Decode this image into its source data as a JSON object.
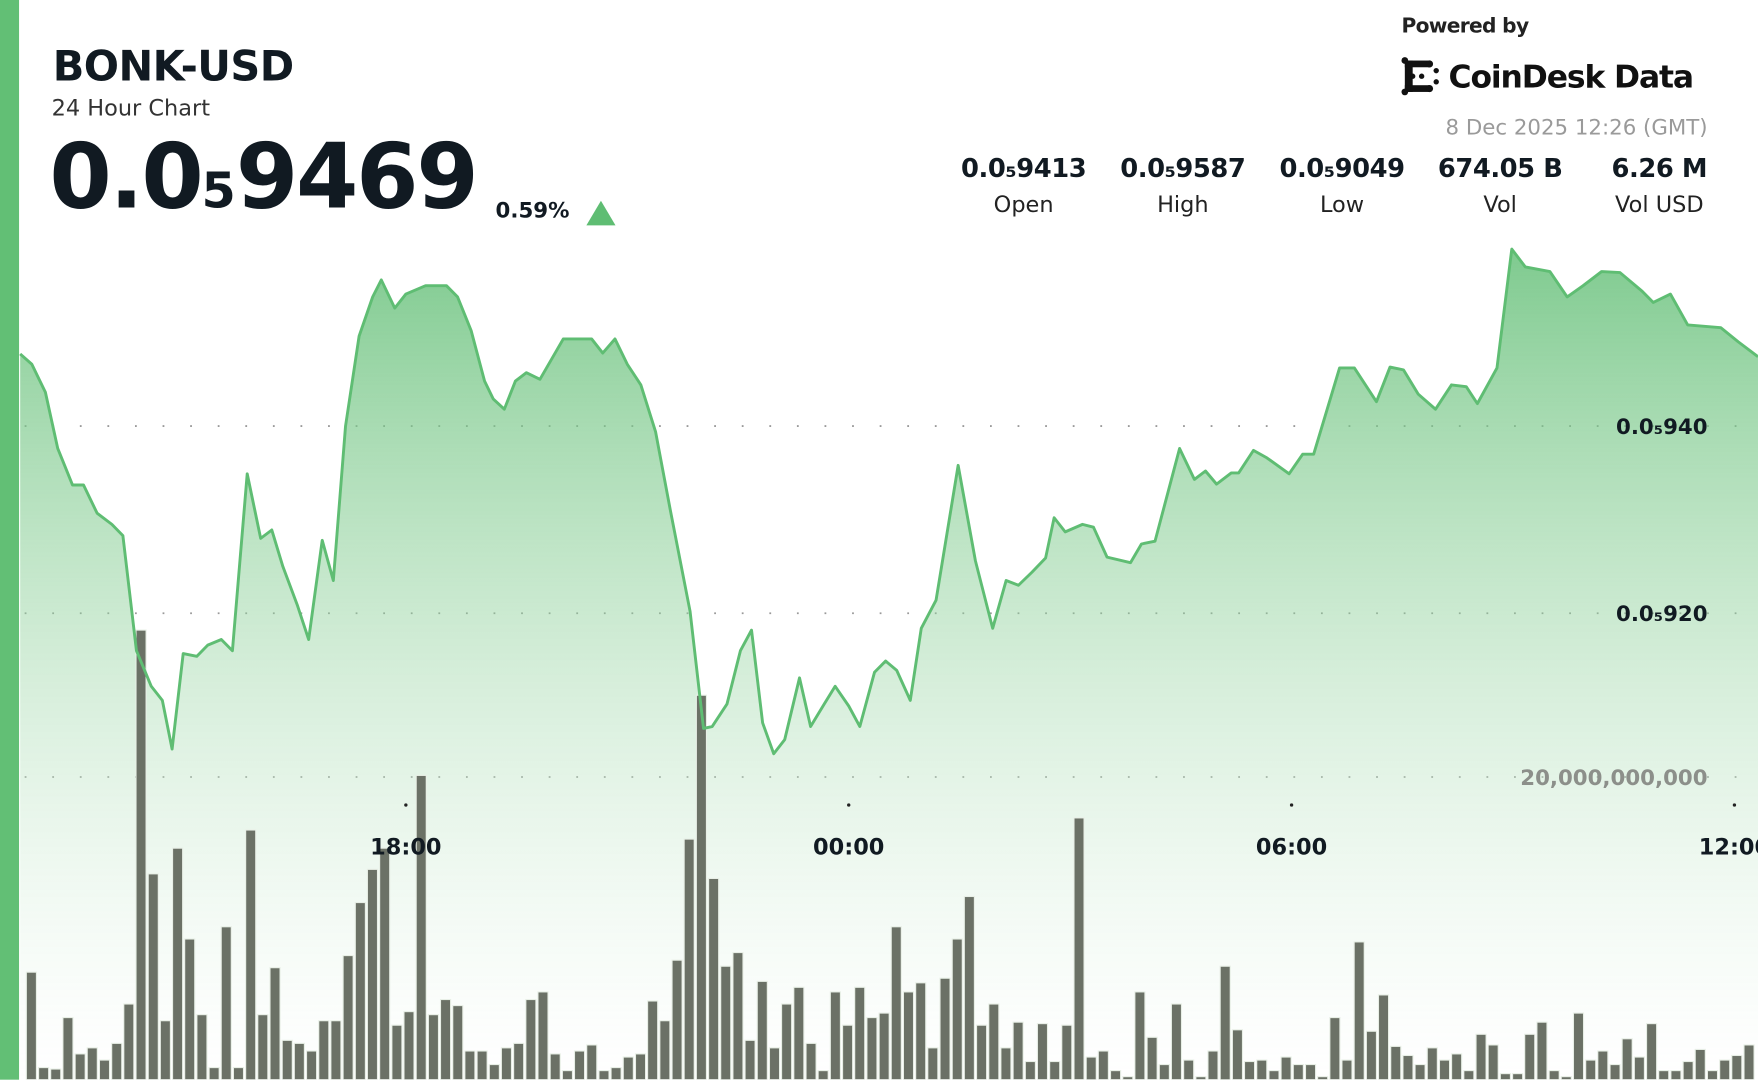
{
  "header": {
    "symbol": "BONK-USD",
    "subtitle": "24 Hour Chart",
    "price_prefix": "0.0",
    "price_zeros": "5",
    "price_digits": "9469",
    "change": "0.59%",
    "change_direction": "up",
    "powered_by": "Powered by",
    "brand": "CoinDesk Data",
    "timestamp": "8 Dec 2025 12:26 (GMT)"
  },
  "stats": [
    {
      "value": "0.0₅9413",
      "label": "Open"
    },
    {
      "value": "0.0₅9587",
      "label": "High"
    },
    {
      "value": "0.0₅9049",
      "label": "Low"
    },
    {
      "value": "674.05 B",
      "label": "Vol"
    },
    {
      "value": "6.26 M",
      "label": "Vol USD"
    }
  ],
  "colors": {
    "accent": "#62bf75",
    "line": "#5fbd73",
    "volume_bar": "#6b7166",
    "up": "#5fbd73"
  },
  "chart_data": {
    "type": "area",
    "price_ticks": [
      {
        "value": 9.4e-06,
        "label": "0.0₅940"
      },
      {
        "value": 9.2e-06,
        "label": "0.0₅920"
      }
    ],
    "volume_ticks": [
      {
        "value": 20000000000,
        "label": "20,000,000,000"
      }
    ],
    "x_ticks": [
      "18:00",
      "00:00",
      "06:00",
      "12:00"
    ],
    "grid": "dotted horizontal",
    "price_series": {
      "x": [
        "12:46",
        "12:56",
        "13:07",
        "13:17",
        "13:29",
        "13:38",
        "13:49",
        "14:01",
        "14:10",
        "14:21",
        "14:33",
        "14:42",
        "14:50",
        "14:59",
        "15:10",
        "15:19",
        "15:30",
        "15:39",
        "15:51",
        "16:02",
        "16:11",
        "16:20",
        "16:32",
        "16:41",
        "16:52",
        "17:01",
        "17:11",
        "17:22",
        "17:33",
        "17:40",
        "17:51",
        "18:00",
        "18:16",
        "18:33",
        "18:42",
        "18:53",
        "19:04",
        "19:11",
        "19:20",
        "19:29",
        "19:38",
        "19:49",
        "20:08",
        "20:31",
        "20:40",
        "20:50",
        "21:00",
        "21:11",
        "21:23",
        "21:35",
        "21:51",
        "22:02",
        "22:09",
        "22:21",
        "22:32",
        "22:41",
        "22:50",
        "22:59",
        "23:08",
        "23:20",
        "23:29",
        "23:40",
        "23:49",
        "00:00",
        "00:09",
        "00:21",
        "00:30",
        "00:39",
        "00:50",
        "00:59",
        "01:11",
        "01:29",
        "01:43",
        "01:57",
        "02:08",
        "02:18",
        "02:29",
        "02:40",
        "02:47",
        "02:56",
        "03:10",
        "03:19",
        "03:30",
        "03:49",
        "03:58",
        "04:09",
        "04:29",
        "04:41",
        "04:50",
        "04:59",
        "05:11",
        "05:17",
        "05:29",
        "05:40",
        "05:58",
        "06:09",
        "06:18",
        "06:39",
        "06:51",
        "07:09",
        "07:20",
        "07:31",
        "07:43",
        "07:57",
        "08:10",
        "08:22",
        "08:31",
        "08:47",
        "08:59",
        "09:10",
        "09:30",
        "09:44",
        "09:57",
        "10:12",
        "10:27",
        "10:45",
        "10:54",
        "11:08",
        "11:22",
        "11:49",
        "12:03",
        "12:19"
      ],
      "y": [
        9.477e-06,
        9.466e-06,
        9.436e-06,
        9.376e-06,
        9.337e-06,
        9.337e-06,
        9.307e-06,
        9.295e-06,
        9.283e-06,
        9.16e-06,
        9.122e-06,
        9.107e-06,
        9.055e-06,
        9.157e-06,
        9.154e-06,
        9.166e-06,
        9.172e-06,
        9.16e-06,
        9.349e-06,
        9.28e-06,
        9.289e-06,
        9.25e-06,
        9.208e-06,
        9.172e-06,
        9.278e-06,
        9.235e-06,
        9.4e-06,
        9.496e-06,
        9.538e-06,
        9.556e-06,
        9.526e-06,
        9.541e-06,
        9.55e-06,
        9.55e-06,
        9.538e-06,
        9.502e-06,
        9.448e-06,
        9.429e-06,
        9.418e-06,
        9.448e-06,
        9.457e-06,
        9.45e-06,
        9.493e-06,
        9.493e-06,
        9.478e-06,
        9.493e-06,
        9.466e-06,
        9.444e-06,
        9.394e-06,
        9.31e-06,
        9.202e-06,
        9.077e-06,
        9.079e-06,
        9.103e-06,
        9.16e-06,
        9.182e-06,
        9.083e-06,
        9.05e-06,
        9.065e-06,
        9.131e-06,
        9.079e-06,
        9.103e-06,
        9.122e-06,
        9.101e-06,
        9.079e-06,
        9.137e-06,
        9.149e-06,
        9.139e-06,
        9.107e-06,
        9.184e-06,
        9.214e-06,
        9.358e-06,
        9.256e-06,
        9.184e-06,
        9.235e-06,
        9.23e-06,
        9.244e-06,
        9.259e-06,
        9.302e-06,
        9.287e-06,
        9.295e-06,
        9.292e-06,
        9.26e-06,
        9.254e-06,
        9.274e-06,
        9.277e-06,
        9.376e-06,
        9.343e-06,
        9.352e-06,
        9.338e-06,
        9.35e-06,
        9.35e-06,
        9.374e-06,
        9.366e-06,
        9.349e-06,
        9.37e-06,
        9.37e-06,
        9.462e-06,
        9.462e-06,
        9.426e-06,
        9.463e-06,
        9.46e-06,
        9.434e-06,
        9.418e-06,
        9.444e-06,
        9.442e-06,
        9.424e-06,
        9.462e-06,
        9.589e-06,
        9.57e-06,
        9.565e-06,
        9.538e-06,
        9.55e-06,
        9.565e-06,
        9.564e-06,
        9.544e-06,
        9.532e-06,
        9.541e-06,
        9.508e-06,
        9.505e-06,
        9.49e-06,
        9.474e-06
      ]
    },
    "volume_series": {
      "values": [
        7100000000.0,
        800000000.0,
        700000000.0,
        4100000000.0,
        1700000000.0,
        2100000000.0,
        1300000000.0,
        2400000000.0,
        5000000000.0,
        29700000000.0,
        13600000000.0,
        3900000000.0,
        15300000000.0,
        9300000000.0,
        4300000000.0,
        800000000.0,
        10100000000.0,
        800000000.0,
        16500000000.0,
        4300000000.0,
        7400000000.0,
        2600000000.0,
        2400000000.0,
        1900000000.0,
        3900000000.0,
        3900000000.0,
        8200000000.0,
        11700000000.0,
        13900000000.0,
        15300000000.0,
        3600000000.0,
        4500000000.0,
        20100000000.0,
        4300000000.0,
        5300000000.0,
        4900000000.0,
        1900000000.0,
        1900000000.0,
        1000000000.0,
        2100000000.0,
        2400000000.0,
        5300000000.0,
        5800000000.0,
        1700000000.0,
        600000000.0,
        1900000000.0,
        2300000000.0,
        600000000.0,
        800000000.0,
        1500000000.0,
        1700000000.0,
        5200000000.0,
        3900000000.0,
        7900000000.0,
        15900000000.0,
        25400000000.0,
        13300000000.0,
        7500000000.0,
        8400000000.0,
        2600000000.0,
        6500000000.0,
        2100000000.0,
        5000000000.0,
        6100000000.0,
        2400000000.0,
        600000000.0,
        5800000000.0,
        3600000000.0,
        6100000000.0,
        4100000000.0,
        4400000000.0,
        10100000000.0,
        5800000000.0,
        6400000000.0,
        2100000000.0,
        6700000000.0,
        9300000000.0,
        12100000000.0,
        3600000000.0,
        5000000000.0,
        2100000000.0,
        3800000000.0,
        1200000000.0,
        3700000000.0,
        1200000000.0,
        3600000000.0,
        17300000000.0,
        1500000000.0,
        1900000000.0,
        600000000.0,
        200000000.0,
        5800000000.0,
        2800000000.0,
        1000000000.0,
        5000000000.0,
        1300000000.0,
        200000000.0,
        1900000000.0,
        7500000000.0,
        3300000000.0,
        1200000000.0,
        1300000000.0,
        600000000.0,
        1500000000.0,
        1000000000.0,
        1000000000.0,
        200000000.0,
        4100000000.0,
        1300000000.0,
        9100000000.0,
        3200000000.0,
        5600000000.0,
        2200000000.0,
        1600000000.0,
        1000000000.0,
        2100000000.0,
        1300000000.0,
        1700000000.0,
        600000000.0,
        3000000000.0,
        2300000000.0,
        400000000.0,
        400000000.0,
        3000000000.0,
        3800000000.0,
        600000000.0,
        200000000.0,
        4400000000.0,
        1300000000.0,
        1900000000.0,
        1000000000.0,
        2700000000.0,
        1500000000.0,
        3700000000.0,
        600000000.0,
        600000000.0,
        1200000000.0,
        2000000000.0,
        600000000.0,
        1300000000.0,
        1600000000.0,
        2300000000.0
      ]
    }
  }
}
